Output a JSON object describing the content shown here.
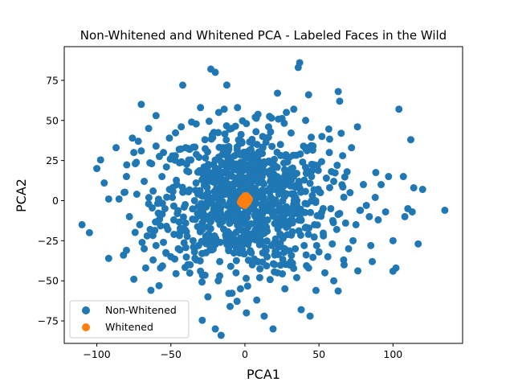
{
  "chart_data": {
    "type": "scatter",
    "title": "Non-Whitened and Whitened PCA - Labeled Faces in the Wild",
    "xlabel": "PCA1",
    "ylabel": "PCA2",
    "xlim": [
      -122,
      147
    ],
    "ylim": [
      -89,
      96
    ],
    "xticks": [
      -100,
      -50,
      0,
      50,
      100
    ],
    "yticks": [
      -75,
      -50,
      -25,
      0,
      25,
      50,
      75
    ],
    "grid": false,
    "legend_position": "lower-left",
    "series": [
      {
        "name": "Non-Whitened",
        "color": "#1f77b4",
        "points": [
          [
            -110,
            -15
          ],
          [
            -105,
            -20
          ],
          [
            -100,
            20
          ],
          [
            -95,
            11
          ],
          [
            -92,
            1
          ],
          [
            -92,
            -36
          ],
          [
            -87,
            33
          ],
          [
            -85,
            1
          ],
          [
            -82,
            -34
          ],
          [
            -80,
            -31
          ],
          [
            -80,
            15
          ],
          [
            -78,
            -10
          ],
          [
            -76,
            39
          ],
          [
            -75,
            30
          ],
          [
            -75,
            -49
          ],
          [
            -74,
            23
          ],
          [
            -73,
            4
          ],
          [
            -72,
            37
          ],
          [
            -71,
            -15
          ],
          [
            -70,
            60
          ],
          [
            -70,
            31
          ],
          [
            -68,
            -30
          ],
          [
            -68,
            12
          ],
          [
            -67,
            -42
          ],
          [
            -66,
            -22
          ],
          [
            -65,
            -2
          ],
          [
            -65,
            45
          ],
          [
            -64,
            -18
          ],
          [
            -63,
            23
          ],
          [
            -62,
            6
          ],
          [
            -62,
            -37
          ],
          [
            -60,
            53
          ],
          [
            -60,
            34
          ],
          [
            -60,
            -28
          ],
          [
            -58,
            -8
          ],
          [
            -58,
            -53
          ],
          [
            -57,
            -42
          ],
          [
            -56,
            15
          ],
          [
            -55,
            30
          ],
          [
            -55,
            -26
          ],
          [
            -54,
            -5
          ],
          [
            -53,
            21
          ],
          [
            -52,
            -18
          ],
          [
            -51,
            39
          ],
          [
            -50,
            -35
          ],
          [
            -49,
            2
          ],
          [
            -48,
            -12
          ],
          [
            -47,
            28
          ],
          [
            -46,
            10
          ],
          [
            -45,
            -30
          ],
          [
            -44,
            -20
          ],
          [
            -43,
            46
          ],
          [
            -42,
            72
          ],
          [
            -41,
            -4
          ],
          [
            -40,
            33
          ],
          [
            -40,
            -14
          ],
          [
            -38,
            18
          ],
          [
            -37,
            -40
          ],
          [
            -36,
            49
          ],
          [
            -35,
            -25
          ],
          [
            -34,
            0
          ],
          [
            -33,
            11
          ],
          [
            -32,
            -8
          ],
          [
            -31,
            27
          ],
          [
            -30,
            58
          ],
          [
            -30,
            -44
          ],
          [
            -29,
            -33
          ],
          [
            -28,
            -17
          ],
          [
            -27,
            38
          ],
          [
            -26,
            20
          ],
          [
            -25,
            -60
          ],
          [
            -25,
            5
          ],
          [
            -24,
            -22
          ],
          [
            -23,
            82
          ],
          [
            -23,
            -28
          ],
          [
            -22,
            41
          ],
          [
            -21,
            -5
          ],
          [
            -20,
            80
          ],
          [
            -20,
            -80
          ],
          [
            -19,
            15
          ],
          [
            -18,
            -50
          ],
          [
            -17,
            -38
          ],
          [
            -16,
            24
          ],
          [
            -15,
            -13
          ],
          [
            -14,
            57
          ],
          [
            -13,
            33
          ],
          [
            -12,
            -3
          ],
          [
            -11,
            -30
          ],
          [
            -10,
            10
          ],
          [
            -10,
            -66
          ],
          [
            -9,
            45
          ],
          [
            -8,
            -22
          ],
          [
            -7,
            28
          ],
          [
            -6,
            -45
          ],
          [
            -5,
            58
          ],
          [
            -5,
            -8
          ],
          [
            -4,
            15
          ],
          [
            -3,
            -55
          ],
          [
            -3,
            -17
          ],
          [
            -2,
            36
          ],
          [
            -2,
            0
          ],
          [
            -1,
            -33
          ],
          [
            0,
            22
          ],
          [
            0,
            -11
          ],
          [
            1,
            48
          ],
          [
            1,
            -70
          ],
          [
            2,
            6
          ],
          [
            3,
            -25
          ],
          [
            4,
            32
          ],
          [
            5,
            -3
          ],
          [
            5,
            -40
          ],
          [
            6,
            14
          ],
          [
            7,
            52
          ],
          [
            8,
            -15
          ],
          [
            8,
            -62
          ],
          [
            9,
            28
          ],
          [
            10,
            -48
          ],
          [
            11,
            2
          ],
          [
            12,
            40
          ],
          [
            12,
            -20
          ],
          [
            13,
            -72
          ],
          [
            14,
            18
          ],
          [
            15,
            -6
          ],
          [
            15,
            -35
          ],
          [
            16,
            46
          ],
          [
            17,
            8
          ],
          [
            18,
            -28
          ],
          [
            19,
            -80
          ],
          [
            20,
            22
          ],
          [
            20,
            -10
          ],
          [
            22,
            67
          ],
          [
            22,
            -45
          ],
          [
            23,
            -3
          ],
          [
            24,
            35
          ],
          [
            25,
            -22
          ],
          [
            26,
            13
          ],
          [
            27,
            -55
          ],
          [
            28,
            55
          ],
          [
            29,
            -16
          ],
          [
            30,
            27
          ],
          [
            31,
            -38
          ],
          [
            32,
            4
          ],
          [
            33,
            57
          ],
          [
            34,
            -30
          ],
          [
            35,
            17
          ],
          [
            35,
            -48
          ],
          [
            36,
            83
          ],
          [
            37,
            86
          ],
          [
            38,
            -12
          ],
          [
            38,
            -68
          ],
          [
            39,
            24
          ],
          [
            40,
            -28
          ],
          [
            41,
            50
          ],
          [
            42,
            -2
          ],
          [
            43,
            66
          ],
          [
            43,
            -42
          ],
          [
            44,
            -72
          ],
          [
            45,
            15
          ],
          [
            46,
            34
          ],
          [
            47,
            -15
          ],
          [
            48,
            -56
          ],
          [
            49,
            22
          ],
          [
            50,
            -32
          ],
          [
            51,
            5
          ],
          [
            52,
            40
          ],
          [
            53,
            -22
          ],
          [
            54,
            -45
          ],
          [
            55,
            14
          ],
          [
            56,
            -35
          ],
          [
            57,
            30
          ],
          [
            58,
            -5
          ],
          [
            59,
            -27
          ],
          [
            60,
            12
          ],
          [
            60,
            -50
          ],
          [
            62,
            -18
          ],
          [
            63,
            68
          ],
          [
            64,
            -8
          ],
          [
            64,
            62
          ],
          [
            65,
            42
          ],
          [
            66,
            28
          ],
          [
            67,
            -40
          ],
          [
            68,
            -14
          ],
          [
            69,
            18
          ],
          [
            70,
            -30
          ],
          [
            71,
            5
          ],
          [
            72,
            33
          ],
          [
            73,
            -25
          ],
          [
            75,
            -15
          ],
          [
            76,
            46
          ],
          [
            78,
            -6
          ],
          [
            80,
            10
          ],
          [
            82,
            -3
          ],
          [
            84,
            -10
          ],
          [
            85,
            -28
          ],
          [
            86,
            -38
          ],
          [
            88,
            2
          ],
          [
            90,
            -12
          ],
          [
            92,
            10
          ],
          [
            95,
            -7
          ],
          [
            97,
            15
          ],
          [
            100,
            -25
          ],
          [
            100,
            -44
          ],
          [
            102,
            -42
          ],
          [
            104,
            57
          ],
          [
            107,
            15
          ],
          [
            108,
            -10
          ],
          [
            110,
            -5
          ],
          [
            112,
            38
          ],
          [
            113,
            -7
          ],
          [
            114,
            8
          ],
          [
            117,
            -27
          ],
          [
            120,
            7
          ],
          [
            135,
            -6
          ]
        ],
        "dense_core": {
          "count": 800,
          "center": [
            0,
            0
          ],
          "spread": [
            28,
            22
          ]
        }
      },
      {
        "name": "Whitened",
        "color": "#ff7f0e",
        "points": [
          [
            0,
            0
          ],
          [
            1,
            1
          ],
          [
            -1,
            -1
          ],
          [
            2,
            -1
          ],
          [
            -2,
            1
          ],
          [
            0,
            2
          ],
          [
            0,
            -2
          ],
          [
            1.5,
            1.5
          ],
          [
            -1.5,
            -1.5
          ],
          [
            2.5,
            0
          ],
          [
            -2.5,
            0
          ],
          [
            0,
            3
          ],
          [
            0,
            -3
          ],
          [
            1,
            -2
          ],
          [
            -1,
            2
          ],
          [
            2,
            2
          ],
          [
            -2,
            -2
          ],
          [
            3,
            1
          ],
          [
            -3,
            -1
          ],
          [
            1,
            3
          ]
        ]
      }
    ]
  }
}
